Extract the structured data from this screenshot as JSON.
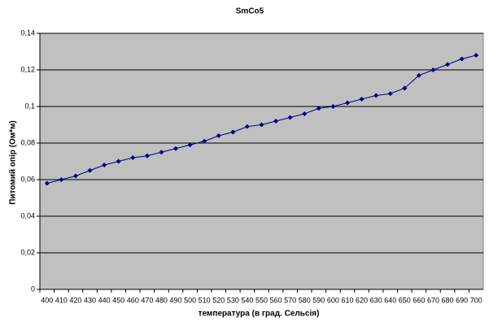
{
  "chart_data": {
    "type": "line",
    "title": "SmCo5",
    "x_label": "температура (в град. Сельсія)",
    "y_label": "Питомий опір (Ом*м)",
    "categories": [
      400,
      410,
      420,
      430,
      440,
      450,
      460,
      470,
      480,
      490,
      500,
      510,
      520,
      530,
      540,
      550,
      560,
      570,
      580,
      590,
      600,
      610,
      620,
      630,
      640,
      650,
      660,
      670,
      680,
      690,
      700
    ],
    "values": [
      0.058,
      0.06,
      0.062,
      0.065,
      0.068,
      0.07,
      0.072,
      0.073,
      0.075,
      0.077,
      0.079,
      0.081,
      0.084,
      0.086,
      0.089,
      0.09,
      0.092,
      0.094,
      0.096,
      0.099,
      0.1,
      0.102,
      0.104,
      0.106,
      0.107,
      0.11,
      0.117,
      0.12,
      0.123,
      0.126,
      0.128
    ],
    "color": "#000080",
    "ylim": [
      0,
      0.14
    ],
    "yticks": [
      0,
      {
        "value": 0.02,
        "label": "0,02"
      },
      {
        "value": 0.04,
        "label": "0,04"
      },
      {
        "value": 0.06,
        "label": "0,06"
      },
      {
        "value": 0.08,
        "label": "0,08"
      },
      {
        "value": 0.1,
        "label": "0,1"
      },
      {
        "value": 0.12,
        "label": "0,12"
      },
      {
        "value": 0.14,
        "label": "0,14"
      }
    ],
    "grid": true
  }
}
